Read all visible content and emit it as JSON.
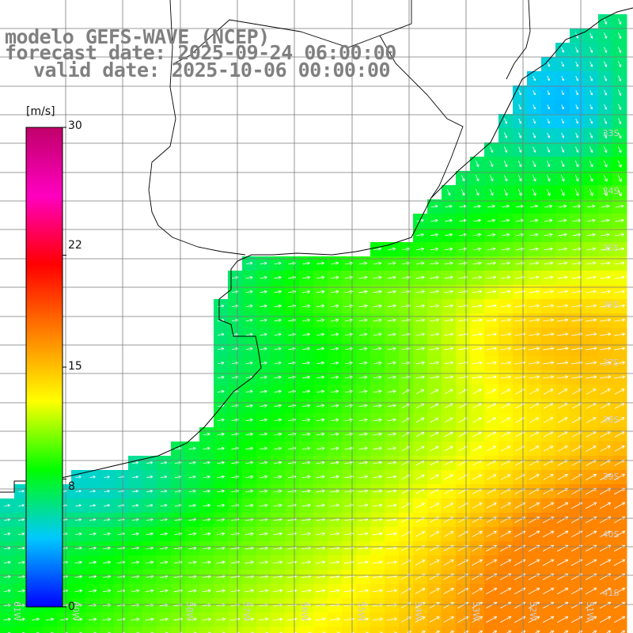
{
  "title": {
    "model": "modelo GEFS-WAVE (NCEP)",
    "forecast": "forecast date: 2025-09-24 06:00:00",
    "valid": "valid date: 2025-10-06 00:00:00"
  },
  "colorbar": {
    "unit": "[m/s]",
    "ticks": [
      "30",
      "22",
      "15",
      "8",
      "0"
    ],
    "tick_values": [
      30,
      22,
      15,
      8,
      0
    ],
    "vmin": 0,
    "vmax": 30,
    "colors": [
      "#0000ff",
      "#00c8ff",
      "#00ff00",
      "#ffff00",
      "#ff8000",
      "#ff0000",
      "#ff00c0",
      "#c0006a"
    ]
  },
  "lat_labels": [
    "33S",
    "34S",
    "35S",
    "36S",
    "37S",
    "38S",
    "39S",
    "40S",
    "41S"
  ],
  "lon_labels": [
    "61W",
    "60W",
    "58W",
    "57W",
    "56W",
    "55W",
    "54W",
    "53W",
    "52W",
    "51W"
  ],
  "field": {
    "quantity": "wind speed",
    "units": "m/s",
    "grid": "approximate 0.25-degree cells, values estimated from color",
    "rows": []
  },
  "colors": {
    "land": "#ffffff",
    "coastline": "#000000",
    "gridlines": "#7a7a7a",
    "label": "#d0d0d0",
    "title": "#808080",
    "arrows": "#ffffff"
  }
}
